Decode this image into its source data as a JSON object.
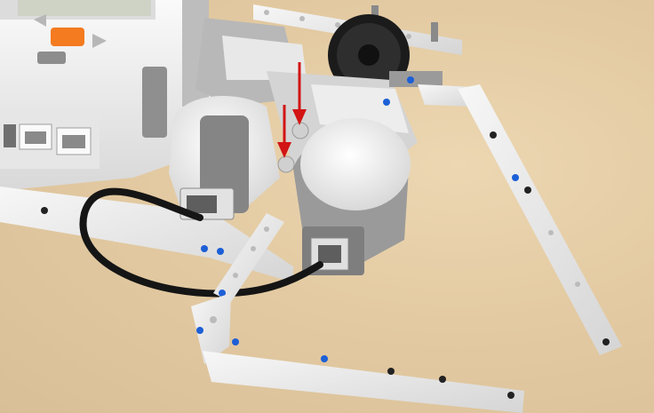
{
  "image": {
    "background_color": "#e2cba4",
    "brick_color": "#f2f2f2",
    "beam_color": "#ececec",
    "motor_gray": "#8c8c8c",
    "brick_button_orange": "#f47b20",
    "gear_color": "#1b1b1b",
    "cable_color": "#151515",
    "pin_blue": "#1d5fd6",
    "arrow_red": "#d21414"
  },
  "annotations": {
    "arrows": [
      {
        "name": "left-red-arrow",
        "color": "#d21414"
      },
      {
        "name": "right-red-arrow",
        "color": "#d21414"
      }
    ]
  }
}
